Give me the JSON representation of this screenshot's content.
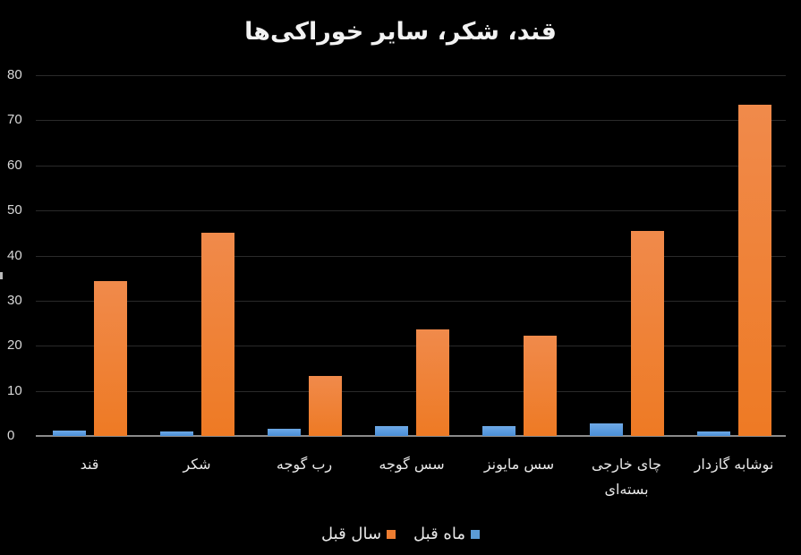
{
  "title": "قند، شکر، سایر خوراکی‌ها",
  "y_axis": {
    "ticks": [
      "80",
      "70",
      "60",
      "50",
      "40",
      "30",
      "20",
      "10",
      "0"
    ]
  },
  "legend": [
    {
      "label": "ماه قبل",
      "color": "#5b9bd5"
    },
    {
      "label": "سال قبل",
      "color": "#ed7d31"
    }
  ],
  "categories": [
    {
      "line1": "قند",
      "line2": ""
    },
    {
      "line1": "شکر",
      "line2": ""
    },
    {
      "line1": "رب گوجه",
      "line2": ""
    },
    {
      "line1": "سس گوجه",
      "line2": ""
    },
    {
      "line1": "سس مایونز",
      "line2": ""
    },
    {
      "line1": "چای خارجی",
      "line2": "بسته‌ای"
    },
    {
      "line1": "نوشابه گازدار",
      "line2": ""
    }
  ],
  "chart_data": {
    "type": "bar",
    "title": "قند، شکر، سایر خوراکی‌ها",
    "categories": [
      "قند",
      "شکر",
      "رب گوجه",
      "سس گوجه",
      "سس مایونز",
      "چای خارجی بسته‌ای",
      "نوشابه گازدار"
    ],
    "series": [
      {
        "name": "ماه قبل",
        "color": "#5b9bd5",
        "values": [
          1.2,
          1.0,
          1.6,
          2.2,
          2.2,
          2.8,
          1.0
        ]
      },
      {
        "name": "سال قبل",
        "color": "#ed7d31",
        "values": [
          34.3,
          45.0,
          13.3,
          23.6,
          22.2,
          45.4,
          73.4
        ]
      }
    ],
    "xlabel": "",
    "ylabel": "",
    "ylim": [
      0,
      80
    ],
    "yticks": [
      0,
      10,
      20,
      30,
      40,
      50,
      60,
      70,
      80
    ],
    "grid": true,
    "legend_position": "bottom",
    "background": "#000000"
  }
}
